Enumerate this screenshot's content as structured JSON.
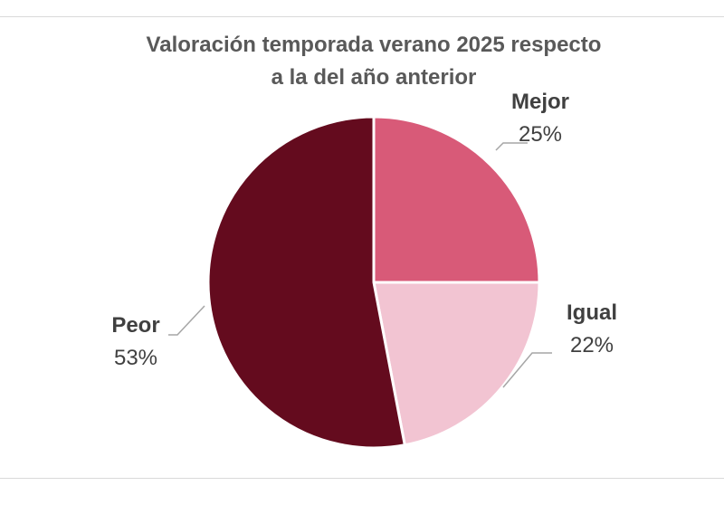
{
  "chart_data": {
    "type": "pie",
    "title_lines": [
      "Valoración temporada verano 2025 respecto",
      "a la del año anterior"
    ],
    "slices": [
      {
        "name": "Mejor",
        "value": 25,
        "label": "25%",
        "color": "#d85a78"
      },
      {
        "name": "Igual",
        "value": 22,
        "label": "22%",
        "color": "#f2c4d2"
      },
      {
        "name": "Peor",
        "value": 53,
        "label": "53%",
        "color": "#640b1e"
      }
    ],
    "legend": "none"
  }
}
